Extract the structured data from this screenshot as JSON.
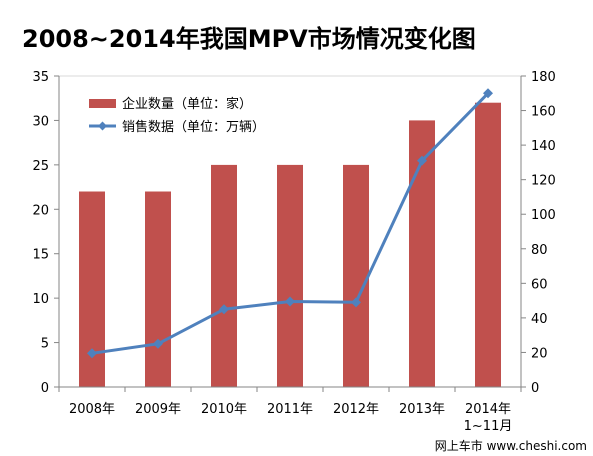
{
  "colors": {
    "bars": "#C0504D",
    "line": "#4F81BD",
    "axis": "#868686",
    "plot_border": "#d9d9d9"
  },
  "watermark": "网上车市 www.cheshi.com",
  "chart_data": {
    "type": "bar",
    "title": "2008~2014年我国MPV市场情况变化图",
    "categories": [
      "2008年",
      "2009年",
      "2010年",
      "2011年",
      "2012年",
      "2013年",
      "2014年\n1~11月"
    ],
    "series": [
      {
        "name": "企业数量（单位：家）",
        "type": "bar",
        "axis": "left",
        "values": [
          22,
          22,
          25,
          25,
          25,
          30,
          32
        ]
      },
      {
        "name": "销售数据（单位：万辆）",
        "type": "line",
        "axis": "right",
        "values": [
          19.5,
          25,
          45,
          49.5,
          49,
          131,
          170
        ]
      }
    ],
    "y_left": {
      "min": 0,
      "max": 35,
      "step": 5,
      "ticks": [
        "0",
        "5",
        "10",
        "15",
        "20",
        "25",
        "30",
        "35"
      ]
    },
    "y_right": {
      "min": 0,
      "max": 180,
      "step": 20,
      "ticks": [
        "0",
        "20",
        "40",
        "60",
        "80",
        "100",
        "120",
        "140",
        "160",
        "180"
      ]
    },
    "grid": false,
    "legend": "top-left"
  }
}
